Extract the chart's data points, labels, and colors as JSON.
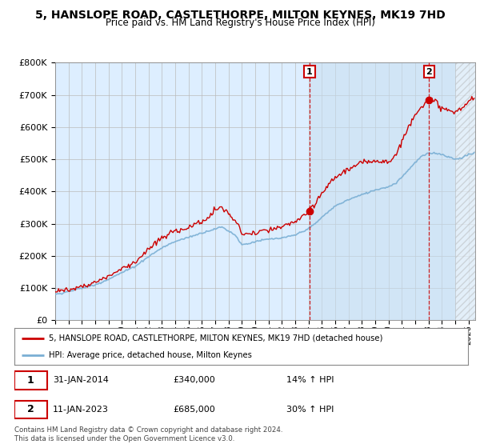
{
  "title": "5, HANSLOPE ROAD, CASTLETHORPE, MILTON KEYNES, MK19 7HD",
  "subtitle": "Price paid vs. HM Land Registry's House Price Index (HPI)",
  "hpi_label": "HPI: Average price, detached house, Milton Keynes",
  "property_label": "5, HANSLOPE ROAD, CASTLETHORPE, MILTON KEYNES, MK19 7HD (detached house)",
  "sale1_date": "31-JAN-2014",
  "sale1_price": 340000,
  "sale1_hpi": "14% ↑ HPI",
  "sale2_date": "11-JAN-2023",
  "sale2_price": 685000,
  "sale2_hpi": "30% ↑ HPI",
  "footer": "Contains HM Land Registry data © Crown copyright and database right 2024.\nThis data is licensed under the Open Government Licence v3.0.",
  "hpi_color": "#7aafd4",
  "property_color": "#cc0000",
  "ylim": [
    0,
    800000
  ],
  "xlim_start": 1995,
  "xlim_end": 2026.5,
  "hatch_start": 2025,
  "shade_start": 2014.08,
  "background_color": "#ddeeff",
  "shade_color": "#ddeeff",
  "grid_color": "#bbbbbb",
  "sale1_t": 2014.083,
  "sale2_t": 2023.042
}
